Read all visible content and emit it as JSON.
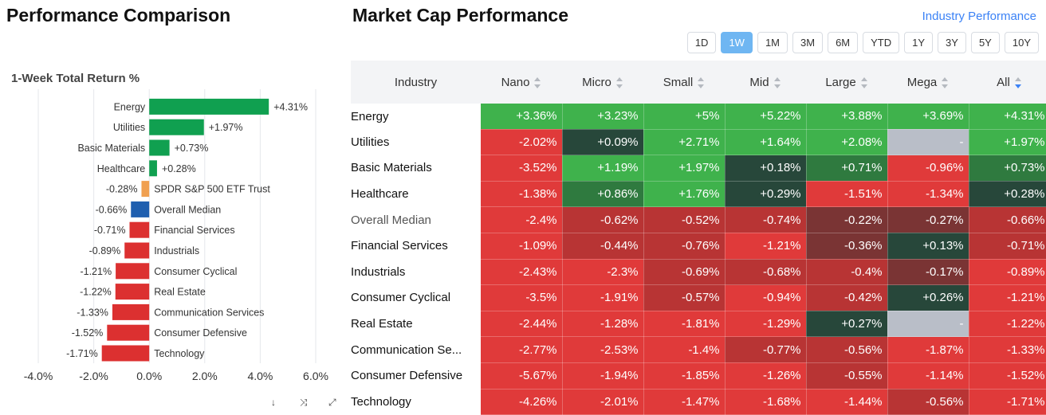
{
  "left": {
    "title": "Performance Comparison",
    "subtitle": "1-Week Total Return %",
    "tools": [
      "↓",
      "⤨",
      "⤢"
    ]
  },
  "chart_data": {
    "type": "bar",
    "orientation": "horizontal",
    "title": "1-Week Total Return %",
    "categories": [
      "Energy",
      "Utilities",
      "Basic Materials",
      "Healthcare",
      "SPDR S&P 500 ETF Trust",
      "Overall Median",
      "Financial Services",
      "Industrials",
      "Consumer Cyclical",
      "Real Estate",
      "Communication Services",
      "Consumer Defensive",
      "Technology"
    ],
    "values": [
      4.31,
      1.97,
      0.73,
      0.28,
      -0.28,
      -0.66,
      -0.71,
      -0.89,
      -1.21,
      -1.22,
      -1.33,
      -1.52,
      -1.71
    ],
    "value_labels": [
      "+4.31%",
      "+1.97%",
      "+0.73%",
      "+0.28%",
      "-0.28%",
      "-0.66%",
      "-0.71%",
      "-0.89%",
      "-1.21%",
      "-1.22%",
      "-1.33%",
      "-1.52%",
      "-1.71%"
    ],
    "bar_colors": [
      "#10a050",
      "#10a050",
      "#10a050",
      "#10a050",
      "#f0a050",
      "#1f5faf",
      "#dc3030",
      "#dc3030",
      "#dc3030",
      "#dc3030",
      "#dc3030",
      "#dc3030",
      "#dc3030"
    ],
    "xlim": [
      -4,
      6
    ],
    "xticks": [
      "-4.0%",
      "-2.0%",
      "0.0%",
      "2.0%",
      "4.0%",
      "6.0%"
    ],
    "xtick_values": [
      -4,
      -2,
      0,
      2,
      4,
      6
    ],
    "grid": "vertical"
  },
  "right": {
    "title": "Market Cap Performance",
    "link": "Industry Performance",
    "periods": [
      "1D",
      "1W",
      "1M",
      "3M",
      "6M",
      "YTD",
      "1Y",
      "3Y",
      "5Y",
      "10Y"
    ],
    "active_period": "1W",
    "columns": [
      "Industry",
      "Nano",
      "Micro",
      "Small",
      "Mid",
      "Large",
      "Mega",
      "All"
    ],
    "sorted_column": "All",
    "rows": [
      {
        "industry": "Energy",
        "values": [
          "+3.36%",
          "+3.23%",
          "+5%",
          "+5.22%",
          "+3.88%",
          "+3.69%",
          "+4.31%"
        ]
      },
      {
        "industry": "Utilities",
        "values": [
          "-2.02%",
          "+0.09%",
          "+2.71%",
          "+1.64%",
          "+2.08%",
          "-",
          "+1.97%"
        ]
      },
      {
        "industry": "Basic Materials",
        "values": [
          "-3.52%",
          "+1.19%",
          "+1.97%",
          "+0.18%",
          "+0.71%",
          "-0.96%",
          "+0.73%"
        ]
      },
      {
        "industry": "Healthcare",
        "values": [
          "-1.38%",
          "+0.86%",
          "+1.76%",
          "+0.29%",
          "-1.51%",
          "-1.34%",
          "+0.28%"
        ]
      },
      {
        "industry": "Overall Median",
        "values": [
          "-2.4%",
          "-0.62%",
          "-0.52%",
          "-0.74%",
          "-0.22%",
          "-0.27%",
          "-0.66%"
        ],
        "muted": true
      },
      {
        "industry": "Financial Services",
        "values": [
          "-1.09%",
          "-0.44%",
          "-0.76%",
          "-1.21%",
          "-0.36%",
          "+0.13%",
          "-0.71%"
        ]
      },
      {
        "industry": "Industrials",
        "values": [
          "-2.43%",
          "-2.3%",
          "-0.69%",
          "-0.68%",
          "-0.4%",
          "-0.17%",
          "-0.89%"
        ]
      },
      {
        "industry": "Consumer Cyclical",
        "values": [
          "-3.5%",
          "-1.91%",
          "-0.57%",
          "-0.94%",
          "-0.42%",
          "+0.26%",
          "-1.21%"
        ]
      },
      {
        "industry": "Real Estate",
        "values": [
          "-2.44%",
          "-1.28%",
          "-1.81%",
          "-1.29%",
          "+0.27%",
          "-",
          "-1.22%"
        ]
      },
      {
        "industry": "Communication Se...",
        "values": [
          "-2.77%",
          "-2.53%",
          "-1.4%",
          "-0.77%",
          "-0.56%",
          "-1.87%",
          "-1.33%"
        ]
      },
      {
        "industry": "Consumer Defensive",
        "values": [
          "-5.67%",
          "-1.94%",
          "-1.85%",
          "-1.26%",
          "-0.55%",
          "-1.14%",
          "-1.52%"
        ]
      },
      {
        "industry": "Technology",
        "values": [
          "-4.26%",
          "-2.01%",
          "-1.47%",
          "-1.68%",
          "-1.44%",
          "-0.56%",
          "-1.71%"
        ]
      }
    ],
    "colors": {
      "strong_pos": "#3fb24c",
      "weak_pos": "#2f7a3f",
      "near_zero_pos": "#27473a",
      "strong_neg": "#e03a3a",
      "weak_neg": "#b83434",
      "near_zero_neg": "#7a3434",
      "na": "#b9bec8"
    }
  }
}
